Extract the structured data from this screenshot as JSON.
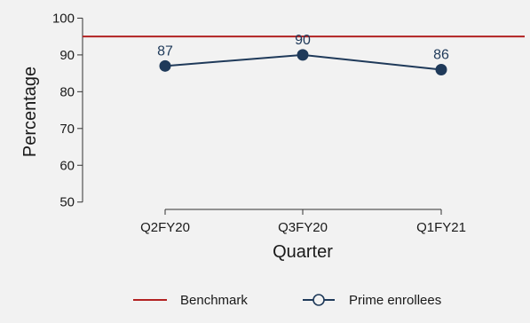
{
  "chart_data": {
    "type": "line",
    "categories": [
      "Q2FY20",
      "Q3FY20",
      "Q1FY21"
    ],
    "series": [
      {
        "name": "Prime enrollees",
        "values": [
          87,
          90,
          86
        ],
        "color": "#1f3a5a"
      }
    ],
    "benchmark": {
      "name": "Benchmark",
      "value": 95,
      "color": "#b22222"
    },
    "data_labels": [
      "87",
      "90",
      "86"
    ],
    "xlabel": "Quarter",
    "ylabel": "Percentage",
    "ylim": [
      48,
      103
    ],
    "yticks": [
      50,
      60,
      70,
      80,
      90,
      100
    ],
    "grid": false,
    "legend_position": "bottom",
    "background": "#f2f2f2",
    "label_color": "#1f3a5a"
  }
}
